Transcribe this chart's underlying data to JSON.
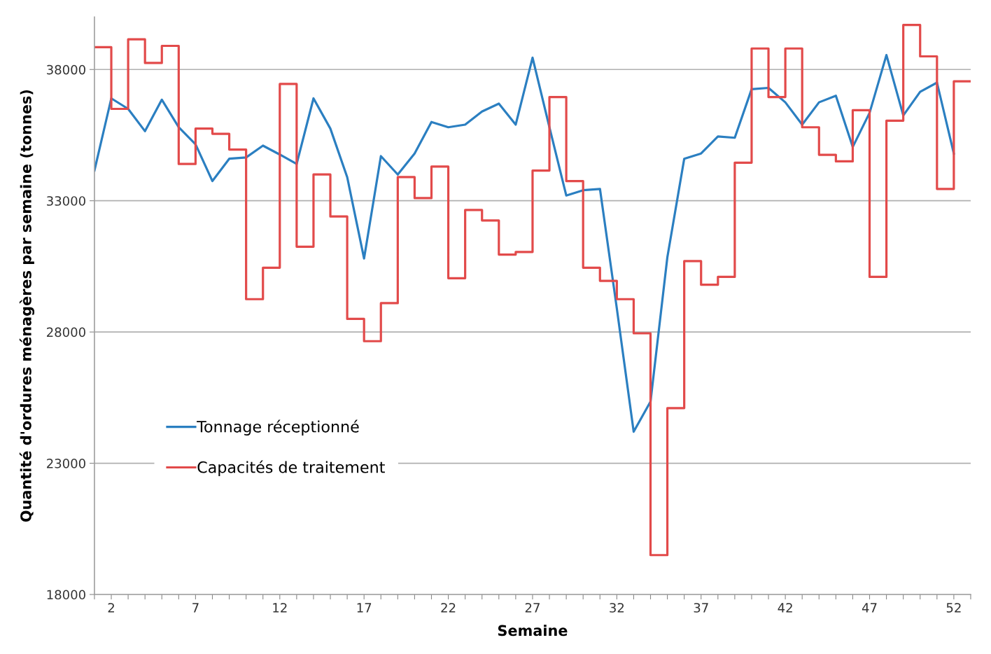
{
  "chart_data": {
    "type": "line",
    "xlabel": "Semaine",
    "ylabel": "Quantité d'ordures ménagères par semaine (tonnes)",
    "x": [
      1,
      2,
      3,
      4,
      5,
      6,
      7,
      8,
      9,
      10,
      11,
      12,
      13,
      14,
      15,
      16,
      17,
      18,
      19,
      20,
      21,
      22,
      23,
      24,
      25,
      26,
      27,
      28,
      29,
      30,
      31,
      32,
      33,
      34,
      35,
      36,
      37,
      38,
      39,
      40,
      41,
      42,
      43,
      44,
      45,
      46,
      47,
      48,
      49,
      50,
      51,
      52
    ],
    "series": [
      {
        "name": "Tonnage réceptionné",
        "color": "#2b7fc1",
        "values": [
          34150,
          36900,
          36500,
          35650,
          36850,
          35800,
          35150,
          33750,
          34600,
          34650,
          35100,
          34760,
          34400,
          36900,
          35750,
          33900,
          30800,
          34700,
          34000,
          34800,
          36000,
          35800,
          35900,
          36400,
          36700,
          35900,
          38450,
          35800,
          33200,
          33400,
          33450,
          28900,
          24200,
          25350,
          30850,
          34600,
          34800,
          35450,
          35400,
          37250,
          37300,
          36750,
          35900,
          36750,
          37000,
          35050,
          36350,
          38550,
          36250,
          37150,
          37500,
          34800
        ]
      },
      {
        "name": "Capacités de traitement",
        "color": "#e24a4a",
        "type": "step",
        "x": [
          1,
          2,
          3,
          4,
          5,
          6,
          7,
          8,
          9,
          10,
          11,
          12,
          13,
          14,
          15,
          16,
          17,
          18,
          19,
          20,
          21,
          22,
          23,
          24,
          25,
          26,
          27,
          28,
          29,
          30,
          31,
          32,
          33,
          34,
          35,
          36,
          37,
          38,
          39,
          40,
          41,
          42,
          43,
          44,
          45,
          46,
          47,
          48,
          49,
          50,
          51,
          52,
          53
        ],
        "values": [
          38850,
          36500,
          39150,
          38250,
          38900,
          34400,
          35750,
          35550,
          34950,
          29250,
          30450,
          37450,
          31250,
          34000,
          32400,
          28500,
          27650,
          29100,
          33900,
          33100,
          34300,
          30050,
          32650,
          32250,
          30950,
          31050,
          34150,
          36950,
          33750,
          30450,
          29950,
          29250,
          27950,
          19500,
          25100,
          30700,
          29800,
          30100,
          34450,
          38800,
          36950,
          38800,
          35800,
          34750,
          34500,
          36450,
          30100,
          36050,
          39700,
          38500,
          33450,
          37550,
          37550
        ]
      }
    ],
    "xlim": [
      1,
      53
    ],
    "xticks": [
      {
        "value": 1,
        "label": null
      },
      2,
      {
        "value": 3,
        "label": null
      },
      {
        "value": 4,
        "label": null
      },
      {
        "value": 5,
        "label": null
      },
      {
        "value": 6,
        "label": null
      },
      7,
      {
        "value": 8,
        "label": null
      },
      {
        "value": 9,
        "label": null
      },
      {
        "value": 10,
        "label": null
      },
      {
        "value": 11,
        "label": null
      },
      12,
      {
        "value": 13,
        "label": null
      },
      {
        "value": 14,
        "label": null
      },
      {
        "value": 15,
        "label": null
      },
      {
        "value": 16,
        "label": null
      },
      17,
      {
        "value": 18,
        "label": null
      },
      {
        "value": 19,
        "label": null
      },
      {
        "value": 20,
        "label": null
      },
      {
        "value": 21,
        "label": null
      },
      22,
      {
        "value": 23,
        "label": null
      },
      {
        "value": 24,
        "label": null
      },
      {
        "value": 25,
        "label": null
      },
      {
        "value": 26,
        "label": null
      },
      27,
      {
        "value": 28,
        "label": null
      },
      {
        "value": 29,
        "label": null
      },
      {
        "value": 30,
        "label": null
      },
      {
        "value": 31,
        "label": null
      },
      32,
      {
        "value": 33,
        "label": null
      },
      {
        "value": 34,
        "label": null
      },
      {
        "value": 35,
        "label": null
      },
      {
        "value": 36,
        "label": null
      },
      37,
      {
        "value": 38,
        "label": null
      },
      {
        "value": 39,
        "label": null
      },
      {
        "value": 40,
        "label": null
      },
      {
        "value": 41,
        "label": null
      },
      42,
      {
        "value": 43,
        "label": null
      },
      {
        "value": 44,
        "label": null
      },
      {
        "value": 45,
        "label": null
      },
      {
        "value": 46,
        "label": null
      },
      47,
      {
        "value": 48,
        "label": null
      },
      {
        "value": 49,
        "label": null
      },
      {
        "value": 50,
        "label": null
      },
      {
        "value": 51,
        "label": null
      },
      52,
      {
        "value": 53,
        "label": null
      }
    ],
    "ylim": [
      18000,
      40000
    ],
    "yticks": [
      18000,
      23000,
      28000,
      33000,
      38000
    ],
    "grid": "y",
    "legend": "lower left",
    "marker": "none",
    "line_style": "solid"
  }
}
